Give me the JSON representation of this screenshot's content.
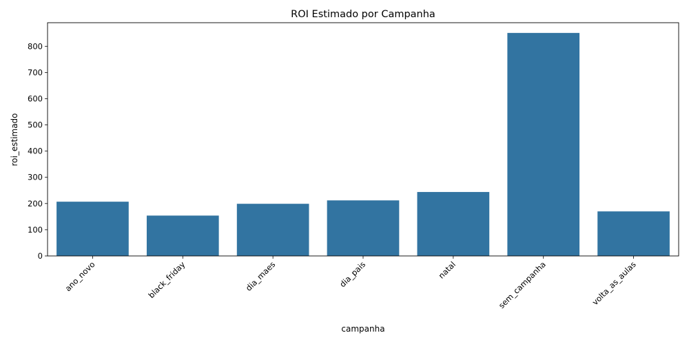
{
  "chart_data": {
    "type": "bar",
    "title": "ROI Estimado por Campanha",
    "xlabel": "campanha",
    "ylabel": "roi_estimado",
    "categories": [
      "ano_novo",
      "black_friday",
      "dia_maes",
      "dia_pais",
      "natal",
      "sem_campanha",
      "volta_as_aulas"
    ],
    "values": [
      207,
      154,
      199,
      212,
      244,
      851,
      170
    ],
    "ylim": [
      0,
      890
    ],
    "yticks": [
      "0",
      "100",
      "200",
      "300",
      "400",
      "500",
      "600",
      "700",
      "800"
    ],
    "grid": false,
    "legend": "none",
    "bar_color": "#3274a1"
  }
}
